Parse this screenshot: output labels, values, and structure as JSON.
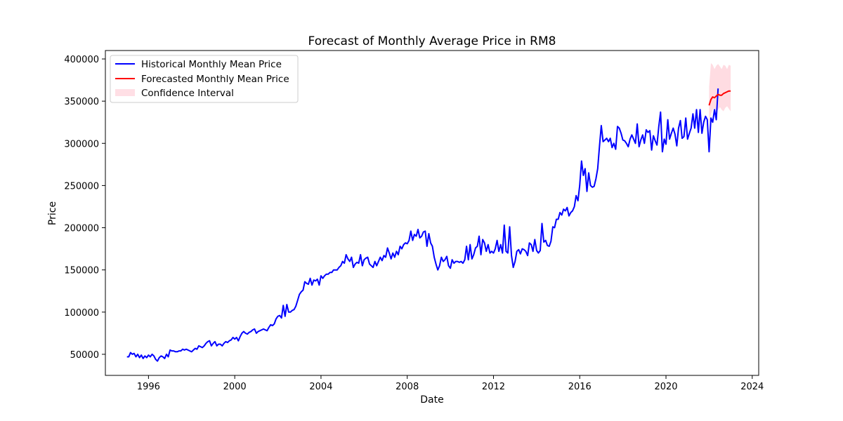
{
  "chart_data": {
    "type": "line",
    "title": "Forecast of Monthly Average Price in RM8",
    "xlabel": "Date",
    "ylabel": "Price",
    "xlim": [
      1994.0,
      2024.3
    ],
    "ylim": [
      25000,
      410000
    ],
    "x_ticks": [
      1996,
      2000,
      2004,
      2008,
      2012,
      2016,
      2020,
      2024
    ],
    "y_ticks": [
      50000,
      100000,
      150000,
      200000,
      250000,
      300000,
      350000,
      400000
    ],
    "grid": false,
    "legend_position": "top-left",
    "series": [
      {
        "name": "Historical Monthly Mean Price",
        "color": "#0000ff",
        "x_start": 1995.0,
        "x_step": 0.08333333,
        "values": [
          47000,
          47000,
          52000,
          50000,
          51000,
          47000,
          50000,
          46000,
          49000,
          45000,
          48000,
          46000,
          49000,
          47000,
          50000,
          48000,
          44000,
          42000,
          46000,
          48000,
          47000,
          45000,
          50000,
          47000,
          55000,
          54000,
          54000,
          53000,
          53000,
          54000,
          54000,
          56000,
          55000,
          56000,
          55000,
          54000,
          53000,
          55000,
          57000,
          56000,
          60000,
          59000,
          58000,
          60000,
          63000,
          65000,
          66000,
          60000,
          63000,
          65000,
          60000,
          62000,
          62000,
          60000,
          63000,
          65000,
          64000,
          66000,
          67000,
          70000,
          68000,
          70000,
          66000,
          71000,
          75000,
          77000,
          75000,
          74000,
          76000,
          77000,
          79000,
          80000,
          75000,
          77000,
          78000,
          79000,
          80000,
          79000,
          78000,
          82000,
          85000,
          84000,
          86000,
          92000,
          95000,
          96000,
          93000,
          108000,
          95000,
          109000,
          100000,
          100000,
          102000,
          103000,
          107000,
          114000,
          121000,
          124000,
          126000,
          136000,
          134000,
          133000,
          140000,
          132000,
          138000,
          137000,
          139000,
          132000,
          143000,
          140000,
          143000,
          145000,
          145000,
          147000,
          147000,
          150000,
          150000,
          150000,
          153000,
          155000,
          160000,
          158000,
          168000,
          163000,
          160000,
          165000,
          153000,
          157000,
          159000,
          158000,
          168000,
          155000,
          162000,
          164000,
          165000,
          157000,
          155000,
          153000,
          160000,
          155000,
          160000,
          165000,
          161000,
          167000,
          165000,
          176000,
          170000,
          163000,
          170000,
          165000,
          172000,
          168000,
          178000,
          175000,
          180000,
          182000,
          181000,
          185000,
          196000,
          185000,
          192000,
          190000,
          198000,
          188000,
          190000,
          195000,
          196000,
          178000,
          193000,
          182000,
          178000,
          165000,
          157000,
          150000,
          155000,
          165000,
          160000,
          162000,
          166000,
          155000,
          152000,
          162000,
          158000,
          160000,
          160000,
          159000,
          160000,
          158000,
          162000,
          178000,
          162000,
          180000,
          163000,
          168000,
          176000,
          178000,
          190000,
          168000,
          186000,
          182000,
          172000,
          180000,
          170000,
          172000,
          170000,
          175000,
          185000,
          172000,
          180000,
          170000,
          203000,
          172000,
          170000,
          201000,
          167000,
          153000,
          160000,
          172000,
          174000,
          169000,
          175000,
          174000,
          172000,
          167000,
          182000,
          180000,
          172000,
          186000,
          173000,
          170000,
          173000,
          205000,
          183000,
          185000,
          179000,
          178000,
          184000,
          201000,
          200000,
          210000,
          210000,
          218000,
          215000,
          222000,
          220000,
          224000,
          214000,
          218000,
          220000,
          225000,
          238000,
          232000,
          250000,
          279000,
          262000,
          270000,
          243000,
          265000,
          250000,
          248000,
          249000,
          258000,
          270000,
          297000,
          321000,
          302000,
          304000,
          306000,
          302000,
          306000,
          295000,
          300000,
          293000,
          320000,
          318000,
          312000,
          304000,
          303000,
          300000,
          296000,
          305000,
          310000,
          305000,
          300000,
          323000,
          296000,
          304000,
          310000,
          300000,
          316000,
          313000,
          315000,
          292000,
          309000,
          303000,
          298000,
          320000,
          337000,
          290000,
          305000,
          299000,
          328000,
          305000,
          312000,
          318000,
          311000,
          297000,
          318000,
          327000,
          306000,
          308000,
          330000,
          305000,
          312000,
          318000,
          335000,
          318000,
          340000,
          313000,
          340000,
          312000,
          325000,
          332000,
          328000,
          290000,
          330000,
          325000,
          340000,
          328000,
          365000
        ]
      },
      {
        "name": "Forecasted Monthly Mean Price",
        "color": "#ff0000",
        "x": [
          2022.0,
          2022.0833,
          2022.1667,
          2022.25,
          2022.3333,
          2022.4167,
          2022.5,
          2022.5833,
          2022.6667,
          2022.75,
          2022.8333,
          2022.9167,
          2023.0
        ],
        "values": [
          345000,
          352000,
          355000,
          354000,
          356000,
          358000,
          357000,
          357000,
          359000,
          360000,
          361000,
          362000,
          362000
        ]
      },
      {
        "name": "Confidence Interval",
        "color": "#ffc0cb",
        "x": [
          2022.0,
          2022.0833,
          2022.1667,
          2022.25,
          2022.3333,
          2022.4167,
          2022.5,
          2022.5833,
          2022.6667,
          2022.75,
          2022.8333,
          2022.9167,
          2023.0
        ],
        "lower": [
          323000,
          335000,
          340000,
          342000,
          338000,
          340000,
          343000,
          340000,
          338000,
          342000,
          344000,
          341000,
          338000
        ],
        "upper": [
          367000,
          395000,
          393000,
          388000,
          392000,
          394000,
          391000,
          388000,
          393000,
          392000,
          388000,
          393000,
          392000
        ]
      }
    ]
  }
}
